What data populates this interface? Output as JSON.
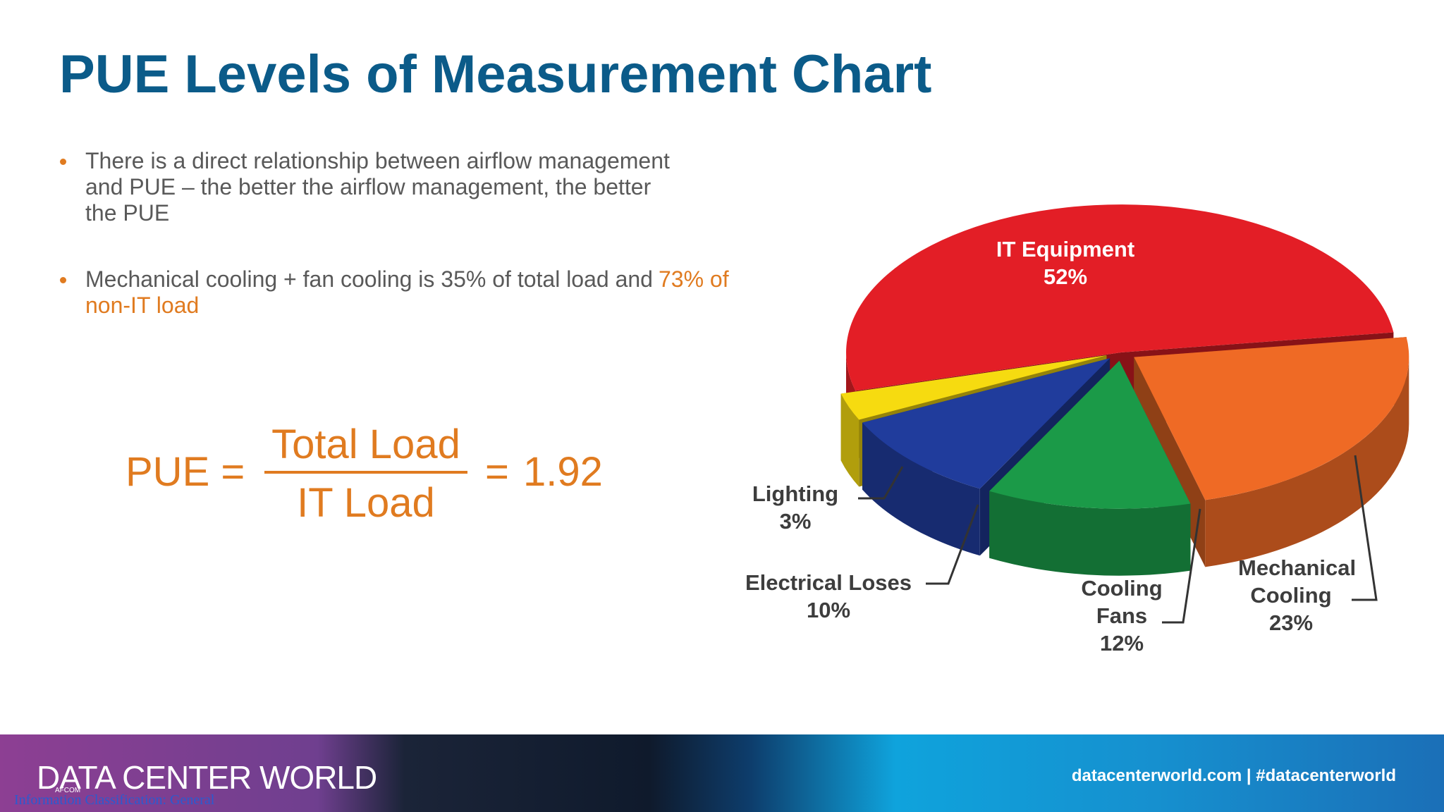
{
  "header": {
    "title": "PUE Levels of Measurement Chart"
  },
  "bullets": [
    {
      "text": "There is a direct relationship between airflow management and PUE – the better the airflow management, the better the PUE"
    },
    {
      "text": "Mechanical cooling + fan cooling is 35% of total load and",
      "highlight": "73% of non-IT load"
    }
  ],
  "formula": {
    "lhs": "PUE =",
    "numerator": "Total Load",
    "denominator": "IT Load",
    "equals": "=",
    "value": 1.92
  },
  "chart_data": {
    "type": "pie",
    "categories": [
      "IT Equipment",
      "Mechanical Cooling",
      "Cooling Fans",
      "Electrical Loses",
      "Lighting"
    ],
    "values": [
      52,
      23,
      12,
      10,
      3
    ],
    "value_labels": [
      "52%",
      "23%",
      "12%",
      "10%",
      "3%"
    ],
    "colors": [
      "#e31e26",
      "#ef6a25",
      "#1b9a48",
      "#203c9c",
      "#f6db10"
    ]
  },
  "footer": {
    "logo": "DATA CENTER WORLD",
    "logo_sub": "AFCOM",
    "classification": "Information Classification: General",
    "links": "datacenterworld.com | #datacenterworld"
  }
}
